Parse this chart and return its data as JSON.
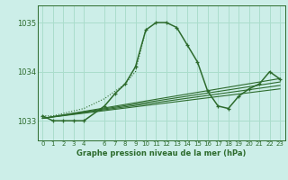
{
  "background_color": "#cceee8",
  "grid_color": "#aaddcc",
  "line_color": "#2d6b2d",
  "title": "Graphe pression niveau de la mer (hPa)",
  "xlim": [
    -0.5,
    23.5
  ],
  "ylim": [
    1032.6,
    1035.35
  ],
  "yticks": [
    1033,
    1034,
    1035
  ],
  "xticks": [
    0,
    1,
    2,
    3,
    4,
    6,
    7,
    8,
    9,
    10,
    11,
    12,
    13,
    14,
    15,
    16,
    17,
    18,
    19,
    20,
    21,
    22,
    23
  ],
  "main_x": [
    0,
    1,
    2,
    3,
    4,
    6,
    7,
    8,
    9,
    10,
    11,
    12,
    13,
    14,
    15,
    16,
    17,
    18,
    19,
    20,
    21,
    22,
    23
  ],
  "main_y": [
    1033.1,
    1033.0,
    1033.0,
    1033.0,
    1033.0,
    1033.3,
    1033.55,
    1033.75,
    1034.1,
    1034.85,
    1035.0,
    1035.0,
    1034.9,
    1034.55,
    1034.2,
    1033.6,
    1033.3,
    1033.25,
    1033.5,
    1033.65,
    1033.75,
    1034.0,
    1033.85
  ],
  "dotted_x": [
    0,
    1,
    2,
    3,
    4,
    6,
    7,
    8,
    9,
    10
  ],
  "dotted_y": [
    1033.1,
    1033.1,
    1033.15,
    1033.2,
    1033.25,
    1033.45,
    1033.6,
    1033.75,
    1034.0,
    1034.85
  ],
  "trend_lines": [
    {
      "x": [
        0,
        23
      ],
      "y": [
        1033.05,
        1033.65
      ]
    },
    {
      "x": [
        0,
        23
      ],
      "y": [
        1033.05,
        1033.72
      ]
    },
    {
      "x": [
        0,
        23
      ],
      "y": [
        1033.05,
        1033.79
      ]
    },
    {
      "x": [
        0,
        23
      ],
      "y": [
        1033.05,
        1033.86
      ]
    }
  ]
}
